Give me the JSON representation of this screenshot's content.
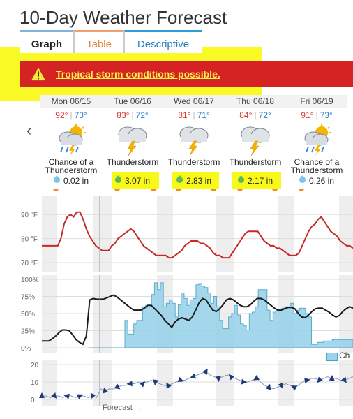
{
  "page": {
    "title": "10-Day Weather Forecast"
  },
  "tabs": [
    {
      "label": "Graph"
    },
    {
      "label": "Table"
    },
    {
      "label": "Descriptive"
    }
  ],
  "alert": {
    "text": "Tropical storm conditions possible."
  },
  "days": [
    {
      "date": "Mon 06/15",
      "hi": "92°",
      "lo": "73°",
      "cond": "Chance of a Thunderstorm",
      "precip": "0.02 in",
      "icon": "partly-sunny-storm-icon"
    },
    {
      "date": "Tue 06/16",
      "hi": "83°",
      "lo": "72°",
      "cond": "Thunderstorm",
      "precip": "3.07 in",
      "icon": "storm-cloud-icon"
    },
    {
      "date": "Wed 06/17",
      "hi": "81°",
      "lo": "71°",
      "cond": "Thunderstorm",
      "precip": "2.83 in",
      "icon": "storm-cloud-icon"
    },
    {
      "date": "Thu 06/18",
      "hi": "84°",
      "lo": "72°",
      "cond": "Thunderstorm",
      "precip": "2.17 in",
      "icon": "storm-cloud-icon"
    },
    {
      "date": "Fri 06/19",
      "hi": "91°",
      "lo": "73°",
      "cond": "Chance of a Thunderstorm",
      "precip": "0.26 in",
      "icon": "partly-sunny-storm-icon"
    }
  ],
  "chart_data": [
    {
      "type": "line",
      "name": "temperature",
      "ylim": [
        70,
        95
      ],
      "yticks": [
        "90 °F",
        "80 °F",
        "70 °F"
      ],
      "values": [
        77,
        77,
        77,
        77,
        77,
        77,
        80,
        86,
        89,
        90,
        89,
        91,
        91,
        88,
        84,
        81,
        79,
        77,
        76,
        75,
        75,
        75,
        77,
        78,
        80,
        81,
        82,
        83,
        84,
        83,
        81,
        79,
        77,
        76,
        75,
        74,
        73,
        73,
        73,
        73,
        72,
        72,
        73,
        74,
        75,
        77,
        78,
        79,
        79,
        79,
        78,
        78,
        77,
        76,
        74,
        73,
        73,
        72,
        72,
        72,
        74,
        76,
        78,
        80,
        82,
        83,
        83,
        83,
        83,
        81,
        79,
        78,
        77,
        77,
        76,
        76,
        75,
        74,
        73,
        73,
        73,
        74,
        77,
        80,
        83,
        85,
        86,
        88,
        89,
        87,
        85,
        83,
        82,
        81,
        79,
        78,
        77,
        77,
        76
      ],
      "color": "#c62828"
    },
    {
      "type": "area",
      "name": "chance_and_cloud",
      "ylim": [
        0,
        100
      ],
      "yticks": [
        "100%",
        "75%",
        "50%",
        "25%",
        "0%"
      ],
      "cloud_cover": [
        10,
        10,
        10,
        13,
        17,
        22,
        26,
        26,
        25,
        19,
        12,
        8,
        5,
        17,
        70,
        72,
        71,
        71,
        71,
        73,
        75,
        77,
        74,
        70,
        66,
        62,
        58,
        55,
        55,
        55,
        58,
        62,
        62,
        57,
        52,
        47,
        40,
        35,
        30,
        38,
        42,
        44,
        42,
        40,
        45,
        55,
        66,
        72,
        70,
        62,
        55,
        53,
        57,
        63,
        70,
        72,
        70,
        66,
        62,
        60,
        60,
        63,
        68,
        72,
        72,
        70,
        66,
        62,
        58,
        55,
        55,
        57,
        59,
        59,
        57,
        50,
        45,
        44,
        48,
        53,
        57,
        58,
        58,
        55,
        52,
        48,
        45,
        47,
        53,
        57,
        60,
        58
      ],
      "precip_chance": [
        0,
        0,
        0,
        0,
        0,
        0,
        0,
        0,
        0,
        0,
        0,
        0,
        40,
        20,
        20,
        35,
        40,
        40,
        60,
        62,
        62,
        78,
        95,
        85,
        95,
        60,
        65,
        70,
        65,
        45,
        63,
        80,
        72,
        62,
        70,
        72,
        92,
        94,
        90,
        88,
        80,
        65,
        75,
        60,
        40,
        28,
        28,
        45,
        50,
        62,
        48,
        35,
        32,
        26,
        50,
        52,
        60,
        85,
        85,
        85,
        55,
        40,
        52,
        55,
        54,
        58,
        60,
        60,
        65,
        50,
        55,
        58,
        58,
        50,
        45,
        5,
        5,
        8,
        8,
        10,
        10,
        10,
        12,
        12,
        12,
        12,
        12,
        12,
        12
      ],
      "series": [
        {
          "name": "Ch"
        }
      ],
      "colors": {
        "area": "#9bd3ea",
        "line": "#1a1a1a"
      }
    },
    {
      "type": "line",
      "name": "wind",
      "ylim": [
        0,
        20
      ],
      "yticks": [
        "20",
        "10",
        "0"
      ],
      "values": [
        2,
        2,
        1,
        2,
        2,
        1,
        2,
        2,
        1,
        2,
        2,
        1,
        2,
        1,
        6,
        5,
        6,
        6,
        7,
        8,
        8,
        9,
        9,
        10,
        9,
        10,
        11,
        10,
        9,
        8,
        8,
        9,
        10,
        11,
        11,
        12,
        13,
        14,
        15,
        16,
        14,
        13,
        12,
        13,
        14,
        13,
        12,
        11,
        10,
        10,
        11,
        12,
        10,
        8,
        7,
        6,
        7,
        8,
        9,
        8,
        7,
        8,
        10,
        11,
        12,
        12,
        11,
        12,
        13,
        12,
        12,
        11,
        11,
        12,
        13
      ],
      "color": "#1f3a78"
    }
  ],
  "footer": {
    "forecast_label": "Forecast →"
  },
  "legend": {
    "label": "Ch"
  }
}
